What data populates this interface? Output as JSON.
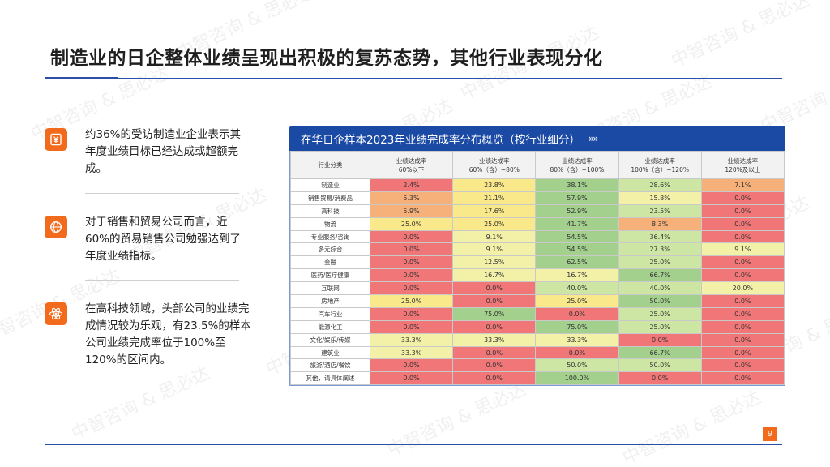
{
  "page": {
    "title": "制造业的日企整体业绩呈现出积极的复苏态势，其他行业表现分化",
    "page_number": "9",
    "watermark": "中智咨询 & 思必达"
  },
  "bullets": [
    {
      "icon": "yen-document-icon",
      "text": "约36%的受访制造业企业表示其年度业绩目标已经达成或超额完成。"
    },
    {
      "icon": "globe-icon",
      "text": "对于销售和贸易公司而言，近60%的贸易销售公司勉强达到了年度业绩指标。"
    },
    {
      "icon": "atom-icon",
      "text": "在高科技领域，头部公司的业绩完成情况较为乐观，有23.5%的样本公司业绩完成率位于100%至120%的区间内。"
    }
  ],
  "table": {
    "title": "在华日企样本2023年业绩完成率分布概览（按行业细分）",
    "chevron": "»»",
    "columns": [
      {
        "line1": "行业分类",
        "line2": ""
      },
      {
        "line1": "业绩达成率",
        "line2": "60%以下"
      },
      {
        "line1": "业绩达成率",
        "line2": "60%（含）~80%"
      },
      {
        "line1": "业绩达成率",
        "line2": "80%（含）~100%"
      },
      {
        "line1": "业绩达成率",
        "line2": "100%（含）~120%"
      },
      {
        "line1": "业绩达成率",
        "line2": "120%及以上"
      }
    ],
    "colors": {
      "red": "#f17677",
      "orange": "#f6b07a",
      "yellow": "#f9e98a",
      "lightyellow": "#f3f0a8",
      "lightgreen": "#cde6a3",
      "green": "#a3d08c"
    },
    "rows": [
      {
        "category": "制造业",
        "values": [
          "2.4%",
          "23.8%",
          "38.1%",
          "28.6%",
          "7.1%"
        ],
        "colors": [
          "red",
          "yellow",
          "green",
          "lightgreen",
          "orange"
        ]
      },
      {
        "category": "销售贸易/消费品",
        "values": [
          "5.3%",
          "21.1%",
          "57.9%",
          "15.8%",
          "0.0%"
        ],
        "colors": [
          "orange",
          "yellow",
          "green",
          "lightyellow",
          "red"
        ]
      },
      {
        "category": "高科技",
        "values": [
          "5.9%",
          "17.6%",
          "52.9%",
          "23.5%",
          "0.0%"
        ],
        "colors": [
          "orange",
          "yellow",
          "green",
          "lightgreen",
          "red"
        ]
      },
      {
        "category": "物流",
        "values": [
          "25.0%",
          "25.0%",
          "41.7%",
          "8.3%",
          "0.0%"
        ],
        "colors": [
          "yellow",
          "yellow",
          "green",
          "orange",
          "red"
        ]
      },
      {
        "category": "专业服务/咨询",
        "values": [
          "0.0%",
          "9.1%",
          "54.5%",
          "36.4%",
          "0.0%"
        ],
        "colors": [
          "red",
          "lightyellow",
          "green",
          "lightgreen",
          "red"
        ]
      },
      {
        "category": "多元综合",
        "values": [
          "0.0%",
          "9.1%",
          "54.5%",
          "27.3%",
          "9.1%"
        ],
        "colors": [
          "red",
          "lightyellow",
          "green",
          "lightgreen",
          "lightyellow"
        ]
      },
      {
        "category": "金融",
        "values": [
          "0.0%",
          "12.5%",
          "62.5%",
          "25.0%",
          "0.0%"
        ],
        "colors": [
          "red",
          "lightyellow",
          "green",
          "lightgreen",
          "red"
        ]
      },
      {
        "category": "医药/医疗健康",
        "values": [
          "0.0%",
          "16.7%",
          "16.7%",
          "66.7%",
          "0.0%"
        ],
        "colors": [
          "red",
          "lightyellow",
          "lightyellow",
          "green",
          "red"
        ]
      },
      {
        "category": "互联网",
        "values": [
          "0.0%",
          "0.0%",
          "40.0%",
          "40.0%",
          "20.0%"
        ],
        "colors": [
          "red",
          "red",
          "lightgreen",
          "lightgreen",
          "lightyellow"
        ]
      },
      {
        "category": "房地产",
        "values": [
          "25.0%",
          "0.0%",
          "25.0%",
          "50.0%",
          "0.0%"
        ],
        "colors": [
          "yellow",
          "red",
          "yellow",
          "green",
          "red"
        ]
      },
      {
        "category": "汽车行业",
        "values": [
          "0.0%",
          "75.0%",
          "0.0%",
          "25.0%",
          "0.0%"
        ],
        "colors": [
          "red",
          "green",
          "red",
          "lightgreen",
          "red"
        ]
      },
      {
        "category": "能源化工",
        "values": [
          "0.0%",
          "0.0%",
          "75.0%",
          "25.0%",
          "0.0%"
        ],
        "colors": [
          "red",
          "red",
          "green",
          "lightgreen",
          "red"
        ]
      },
      {
        "category": "文化/娱乐/传媒",
        "values": [
          "33.3%",
          "33.3%",
          "33.3%",
          "0.0%",
          "0.0%"
        ],
        "colors": [
          "lightyellow",
          "lightyellow",
          "lightyellow",
          "red",
          "red"
        ]
      },
      {
        "category": "建筑业",
        "values": [
          "33.3%",
          "0.0%",
          "0.0%",
          "66.7%",
          "0.0%"
        ],
        "colors": [
          "lightyellow",
          "red",
          "red",
          "green",
          "red"
        ]
      },
      {
        "category": "旅游/酒店/餐饮",
        "values": [
          "0.0%",
          "0.0%",
          "50.0%",
          "50.0%",
          "0.0%"
        ],
        "colors": [
          "red",
          "red",
          "lightgreen",
          "lightgreen",
          "red"
        ]
      },
      {
        "category": "其他，请具体阐述",
        "values": [
          "0.0%",
          "0.0%",
          "100.0%",
          "0.0%",
          "0.0%"
        ],
        "colors": [
          "red",
          "red",
          "green",
          "red",
          "red"
        ]
      }
    ]
  }
}
